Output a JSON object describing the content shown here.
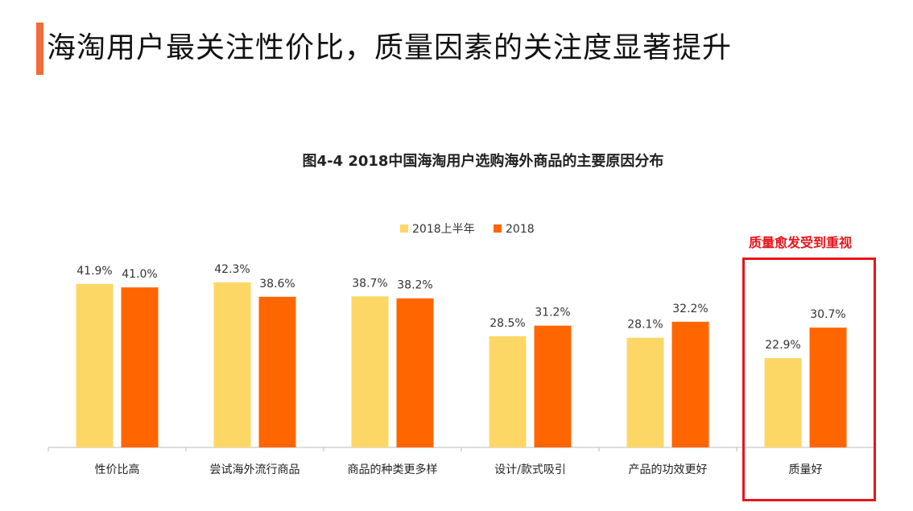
{
  "page_title": "海淘用户最关注性价比，质量因素的关注度显著提升",
  "annotation": "质量愈发受到重视",
  "colors": {
    "accent": "#f26b38",
    "series1": "#FDD766",
    "series2": "#FF6600",
    "highlight": "#e8141b"
  },
  "chart_data": {
    "type": "bar",
    "title": "图4-4 2018中国海淘用户选购海外商品的主要原因分布",
    "categories": [
      "性价比高",
      "尝试海外流行商品",
      "商品的种类更多样",
      "设计/款式吸引",
      "产品的功效更好",
      "质量好"
    ],
    "series": [
      {
        "name": "2018上半年",
        "values": [
          41.9,
          42.3,
          38.7,
          28.5,
          28.1,
          22.9
        ]
      },
      {
        "name": "2018",
        "values": [
          41.0,
          38.6,
          38.2,
          31.2,
          32.2,
          30.7
        ]
      }
    ],
    "value_suffix": "%",
    "legend_position": "top-center",
    "ylim": [
      0,
      45
    ],
    "grid": false
  }
}
